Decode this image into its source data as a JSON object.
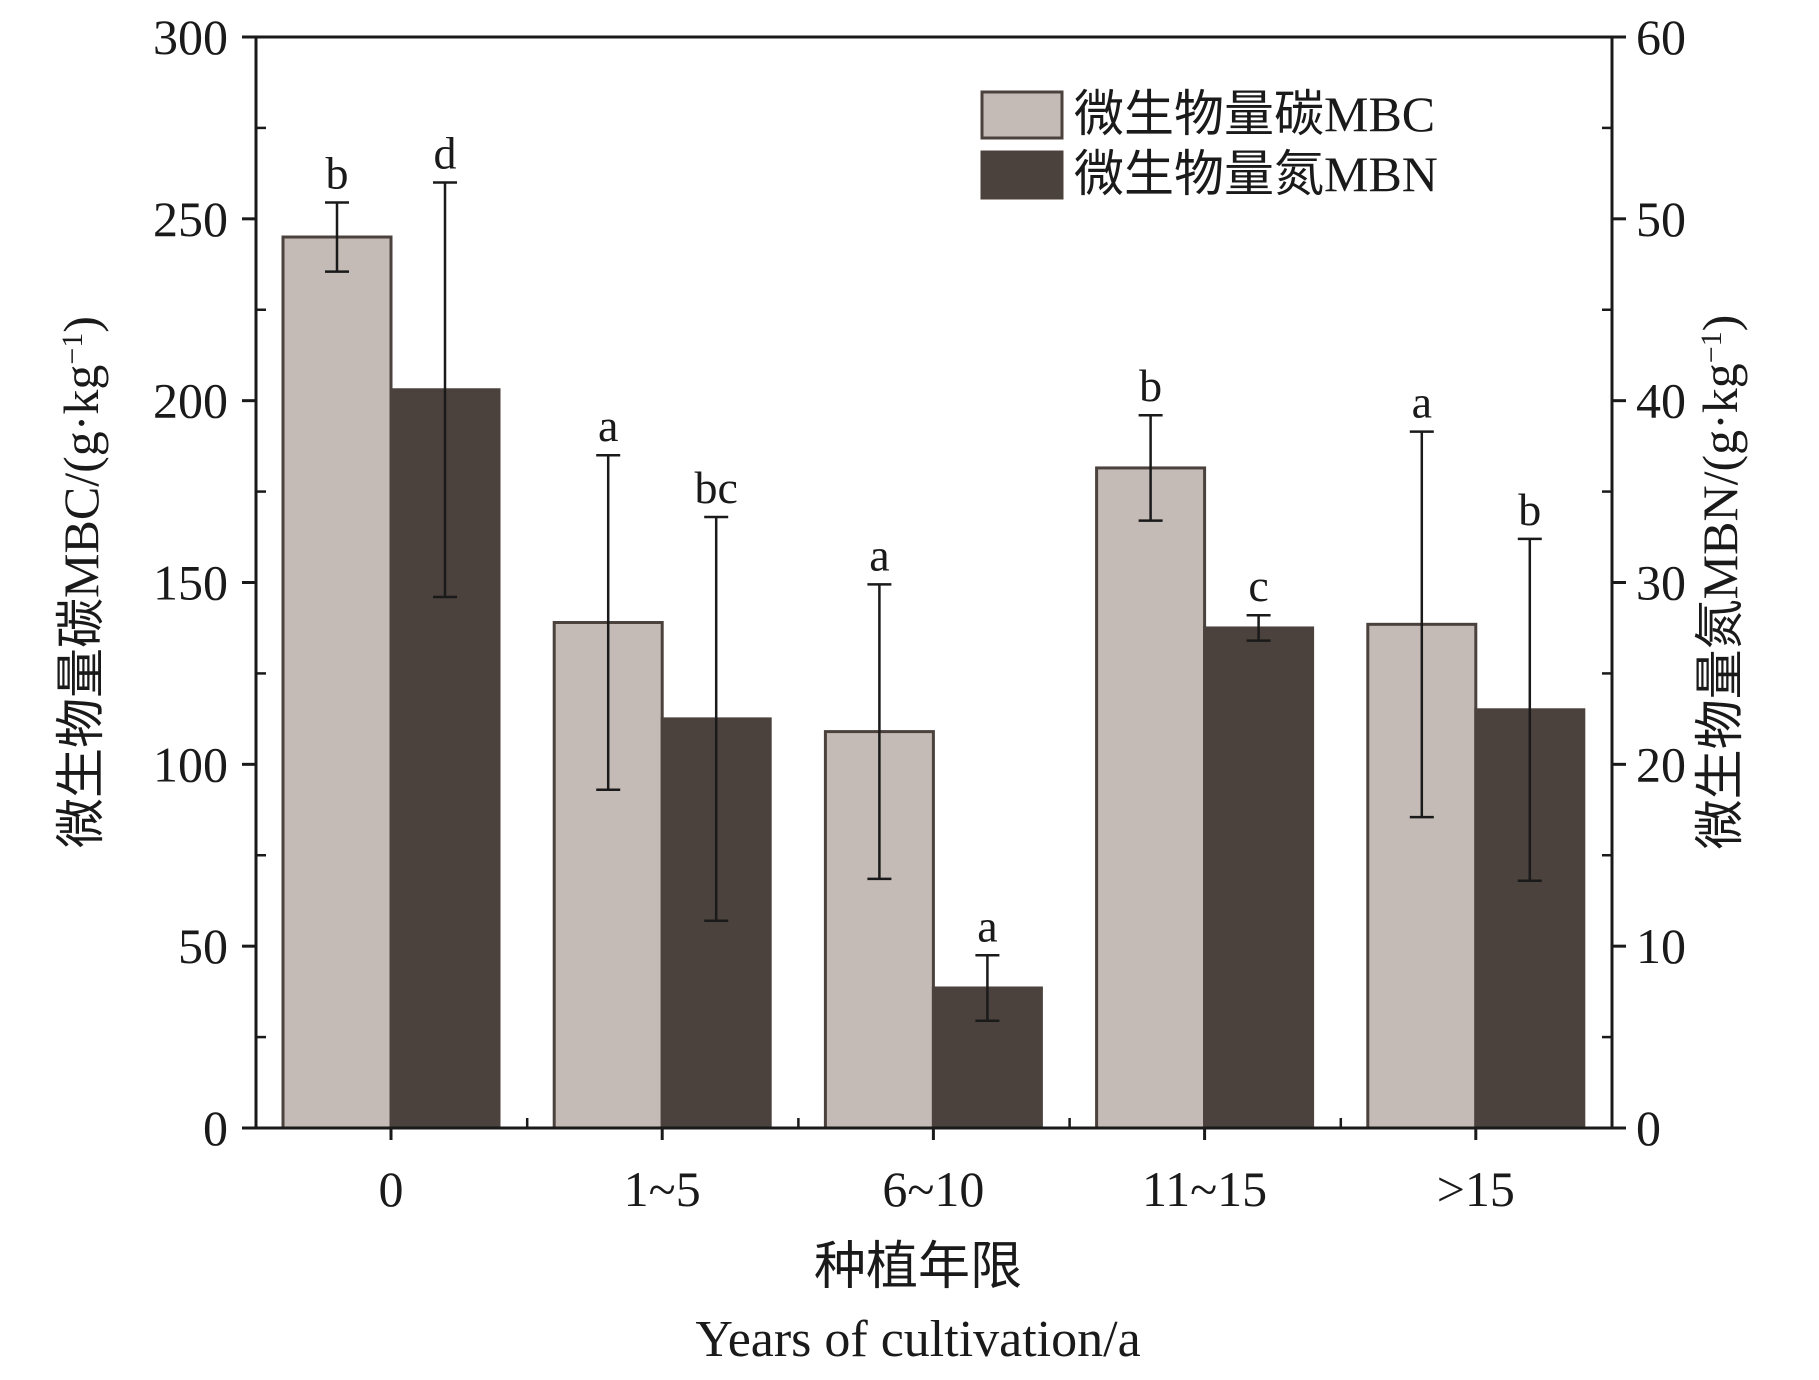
{
  "chart_data": {
    "type": "bar",
    "categories": [
      "0",
      "1~5",
      "6~10",
      "11~15",
      ">15"
    ],
    "xlabel_cn": "种植年限",
    "xlabel_en": "Years of cultivation/a",
    "ylabel_left_main": "微生物量碳MBC/(g·kg",
    "ylabel_right_main": "微生物量氮MBN/(g·kg",
    "ylabel_sup": "−1",
    "ylabel_close": ")",
    "ylim_left": [
      0,
      300
    ],
    "ylim_right": [
      0,
      60
    ],
    "yticks_left": [
      "0",
      "50",
      "100",
      "150",
      "200",
      "250",
      "300"
    ],
    "yticks_right": [
      "0",
      "10",
      "20",
      "30",
      "40",
      "50",
      "60"
    ],
    "series": [
      {
        "name": "微生物量碳MBC",
        "axis": "left",
        "color": "#c4bab6",
        "values": [
          245,
          139,
          109,
          181.5,
          138.5
        ],
        "errors": [
          9.5,
          46,
          40.5,
          14.5,
          53
        ],
        "sig_labels": [
          "b",
          "a",
          "a",
          "b",
          "a"
        ]
      },
      {
        "name": "微生物量氮MBN",
        "axis": "right",
        "color": "#4b413d",
        "values": [
          40.6,
          22.5,
          7.7,
          27.5,
          23
        ],
        "errors": [
          11.4,
          11.1,
          1.8,
          0.7,
          9.4
        ],
        "sig_labels": [
          "d",
          "bc",
          "a",
          "c",
          "b"
        ]
      }
    ]
  }
}
